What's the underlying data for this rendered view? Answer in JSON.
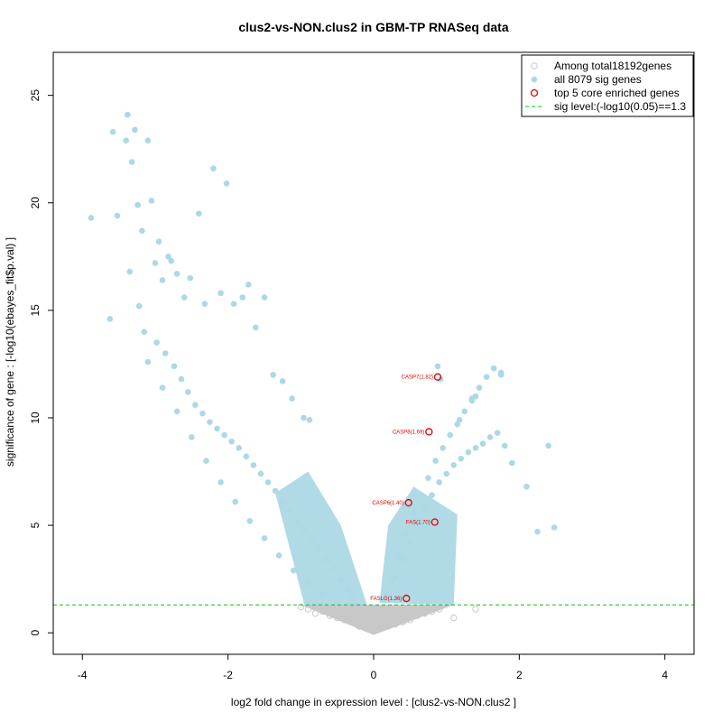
{
  "chart_data": {
    "type": "scatter",
    "title": "clus2-vs-NON.clus2 in GBM-TP RNASeq data",
    "xlabel": "log2 fold change in expression level : [clus2-vs-NON.clus2 ]",
    "ylabel": "significance of gene : [-log10(ebayes_fit$p.val) ]",
    "xlim": [
      -4.4,
      4.4
    ],
    "ylim": [
      -1.0,
      27.0
    ],
    "x_ticks": [
      "-4",
      "-2",
      "0",
      "2",
      "4"
    ],
    "y_ticks": [
      "0",
      "5",
      "10",
      "15",
      "20",
      "25"
    ],
    "threshold": 1.3,
    "grid": false,
    "legend_position": "top-right",
    "legend": [
      {
        "label": "Among total18192genes",
        "marker": "open-circle-gray"
      },
      {
        "label": "all 8079 sig genes",
        "marker": "filled-circle-lightblue"
      },
      {
        "label": "top 5 core enriched genes",
        "marker": "open-circle-red"
      },
      {
        "label": "sig level:(-log10(0.05)==1.3",
        "marker": "dashed-line-green"
      }
    ],
    "colors": {
      "nonsig": "#c8c8c8",
      "sig": "#add8e6",
      "highlight": "#e00000",
      "threshold": "#00cc00"
    },
    "series": [
      {
        "name": "all 8079 sig genes",
        "x": [
          -3.88,
          -3.62,
          -3.58,
          -3.52,
          -3.4,
          -3.38,
          -3.32,
          -3.28,
          -3.24,
          -3.18,
          -3.1,
          -3.05,
          -3.0,
          -2.95,
          -2.9,
          -2.82,
          -2.78,
          -2.7,
          -2.6,
          -2.52,
          -2.4,
          -2.32,
          -2.2,
          -2.1,
          -2.02,
          -1.92,
          -1.8,
          -1.72,
          -1.62,
          -1.5,
          -1.38,
          -1.25,
          -1.12,
          -0.96,
          -0.88,
          -3.35,
          -3.22,
          -3.15,
          -2.98,
          -2.86,
          -2.74,
          -2.64,
          -2.55,
          -2.45,
          -2.35,
          -2.25,
          -2.15,
          -2.05,
          -1.95,
          -1.85,
          -1.75,
          -1.65,
          -1.55,
          -1.45,
          -1.35,
          -1.25,
          -1.15,
          -1.05,
          -0.95,
          -0.85,
          -0.75,
          -0.65,
          -0.55,
          -0.45,
          -0.35,
          -0.3,
          -3.1,
          -2.9,
          -2.7,
          -2.5,
          -2.3,
          -2.1,
          -1.9,
          -1.7,
          -1.5,
          -1.3,
          -1.1,
          -0.9,
          -0.7,
          -0.5,
          0.2,
          0.3,
          0.4,
          0.5,
          0.6,
          0.7,
          0.8,
          0.9,
          1.0,
          1.1,
          1.2,
          1.3,
          1.4,
          1.5,
          1.6,
          1.7,
          1.8,
          1.9,
          2.1,
          2.25,
          2.4,
          2.48,
          0.25,
          0.35,
          0.45,
          0.55,
          0.65,
          0.75,
          0.85,
          0.95,
          1.05,
          1.15,
          1.25,
          1.35,
          1.45,
          1.55,
          1.65,
          1.75,
          0.88,
          0.92,
          1.75,
          1.4,
          1.35,
          1.18
        ],
        "y": [
          19.3,
          14.6,
          23.3,
          19.4,
          22.9,
          24.1,
          21.9,
          23.4,
          19.9,
          18.7,
          22.9,
          20.1,
          17.2,
          18.2,
          16.4,
          17.5,
          17.3,
          16.7,
          15.6,
          16.5,
          19.5,
          15.3,
          21.6,
          15.8,
          20.9,
          15.3,
          15.6,
          16.2,
          14.2,
          15.6,
          12.0,
          11.7,
          10.9,
          10.0,
          9.9,
          16.8,
          15.2,
          14.0,
          13.5,
          13.0,
          12.4,
          11.8,
          11.2,
          10.6,
          10.2,
          9.8,
          9.5,
          9.2,
          8.9,
          8.6,
          8.2,
          7.8,
          7.4,
          7.0,
          6.6,
          6.1,
          5.7,
          5.2,
          4.8,
          4.3,
          3.9,
          3.4,
          3.0,
          2.5,
          2.0,
          1.6,
          12.6,
          11.4,
          10.3,
          9.1,
          8.0,
          7.0,
          6.1,
          5.2,
          4.4,
          3.6,
          2.9,
          2.3,
          1.8,
          1.5,
          1.8,
          2.6,
          3.4,
          4.2,
          5.0,
          5.8,
          6.4,
          7.0,
          7.4,
          7.8,
          8.1,
          8.4,
          8.6,
          8.8,
          9.1,
          9.3,
          8.7,
          7.9,
          6.8,
          4.7,
          8.7,
          4.9,
          2.4,
          3.6,
          4.6,
          5.6,
          6.4,
          7.2,
          8.0,
          8.6,
          9.2,
          9.7,
          10.3,
          10.8,
          11.4,
          11.9,
          12.3,
          12.0,
          12.4,
          11.8,
          12.1,
          11.0,
          10.9,
          9.9
        ]
      },
      {
        "name": "Among total18192genes",
        "x": [
          -0.9,
          -0.8,
          -0.7,
          -0.6,
          -0.5,
          -0.4,
          -0.3,
          -0.2,
          -0.1,
          0.0,
          0.1,
          0.2,
          0.3,
          0.4,
          0.5,
          0.6,
          0.7,
          0.8,
          0.9,
          1.1,
          -1.0,
          1.4
        ],
        "y": [
          1.1,
          0.9,
          1.0,
          0.8,
          0.7,
          0.6,
          0.5,
          0.3,
          0.2,
          0.1,
          0.2,
          0.3,
          0.4,
          0.5,
          0.6,
          0.8,
          0.9,
          1.0,
          1.1,
          0.7,
          1.2,
          1.1
        ]
      }
    ],
    "highlighted": [
      {
        "label": "CASP7(1.82)",
        "x": 0.88,
        "y": 11.9
      },
      {
        "label": "CASP8(1.69)",
        "x": 0.76,
        "y": 9.35
      },
      {
        "label": "CASP6(1.40)",
        "x": 0.48,
        "y": 6.05
      },
      {
        "label": "FAS(1.70)",
        "x": 0.84,
        "y": 5.15
      },
      {
        "label": "FASLG(1.36)",
        "x": 0.45,
        "y": 1.6
      }
    ]
  }
}
